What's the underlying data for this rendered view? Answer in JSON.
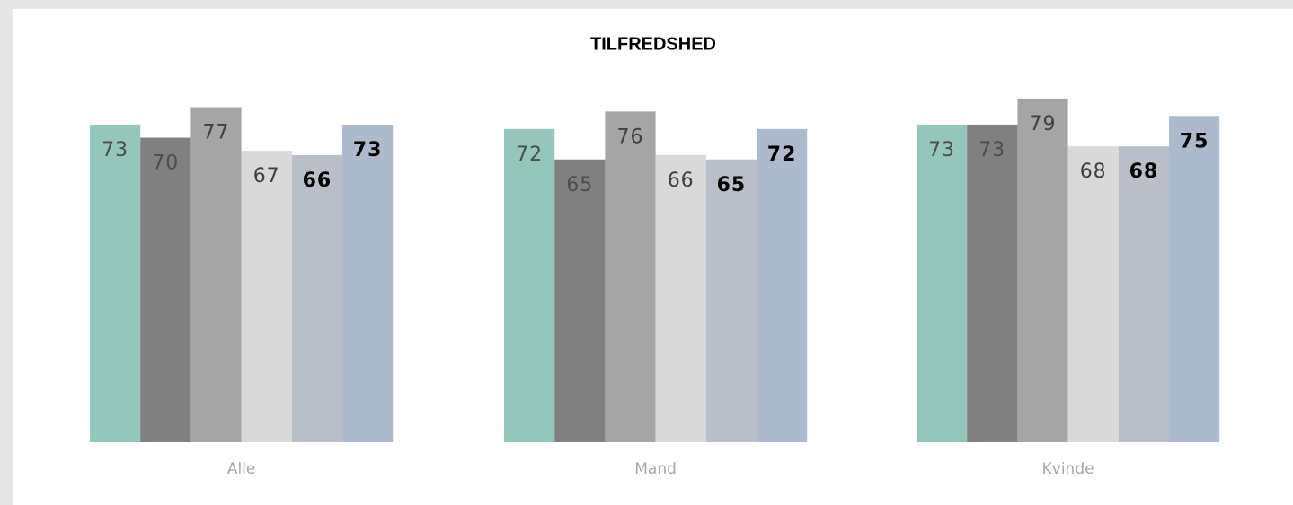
{
  "chart_data": {
    "type": "bar",
    "title": "TILFREDSHED",
    "categories": [
      "Alle",
      "Mand",
      "Kvinde"
    ],
    "series": [
      {
        "color": "#95c6bb",
        "values": [
          73,
          72,
          73
        ]
      },
      {
        "color": "#808080",
        "values": [
          70,
          65,
          73
        ]
      },
      {
        "color": "#a5a5a5",
        "values": [
          77,
          76,
          79
        ]
      },
      {
        "color": "#d9d9d9",
        "values": [
          67,
          66,
          68
        ]
      },
      {
        "color": "#b8bfc9",
        "values": [
          66,
          65,
          68
        ]
      },
      {
        "color": "#adb9cc",
        "values": [
          73,
          72,
          75
        ]
      }
    ],
    "ylim": [
      0,
      100
    ]
  }
}
